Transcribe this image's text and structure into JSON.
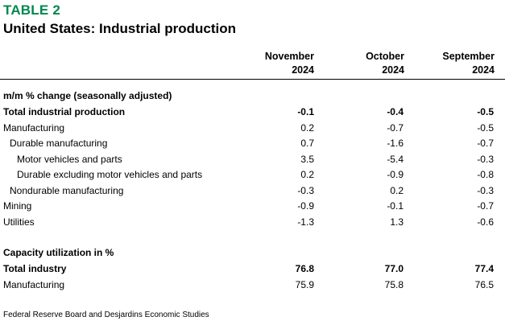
{
  "tag": "TABLE 2",
  "title": "United States: Industrial production",
  "columns": [
    {
      "month": "November",
      "year": "2024"
    },
    {
      "month": "October",
      "year": "2024"
    },
    {
      "month": "September",
      "year": "2024"
    }
  ],
  "section1": "m/m % change (seasonally adjusted)",
  "rows1": [
    {
      "label": "Total industrial production",
      "values": [
        "-0.1",
        "-0.4",
        "-0.5"
      ],
      "bold": true,
      "indent": 0
    },
    {
      "label": "Manufacturing",
      "values": [
        "0.2",
        "-0.7",
        "-0.5"
      ],
      "bold": false,
      "indent": 0
    },
    {
      "label": "Durable manufacturing",
      "values": [
        "0.7",
        "-1.6",
        "-0.7"
      ],
      "bold": false,
      "indent": 1
    },
    {
      "label": "Motor vehicles and parts",
      "values": [
        "3.5",
        "-5.4",
        "-0.3"
      ],
      "bold": false,
      "indent": 2
    },
    {
      "label": "Durable excluding motor vehicles and parts",
      "values": [
        "0.2",
        "-0.9",
        "-0.8"
      ],
      "bold": false,
      "indent": 2
    },
    {
      "label": "Nondurable manufacturing",
      "values": [
        "-0.3",
        "0.2",
        "-0.3"
      ],
      "bold": false,
      "indent": 1
    },
    {
      "label": "Mining",
      "values": [
        "-0.9",
        "-0.1",
        "-0.7"
      ],
      "bold": false,
      "indent": 0
    },
    {
      "label": "Utilities",
      "values": [
        "-1.3",
        "1.3",
        "-0.6"
      ],
      "bold": false,
      "indent": 0
    }
  ],
  "section2": "Capacity utilization in %",
  "rows2": [
    {
      "label": "Total industry",
      "values": [
        "76.8",
        "77.0",
        "77.4"
      ],
      "bold": true,
      "indent": 0
    },
    {
      "label": "Manufacturing",
      "values": [
        "75.9",
        "75.8",
        "76.5"
      ],
      "bold": false,
      "indent": 0
    }
  ],
  "source": "Federal Reserve Board and Desjardins Economic Studies"
}
